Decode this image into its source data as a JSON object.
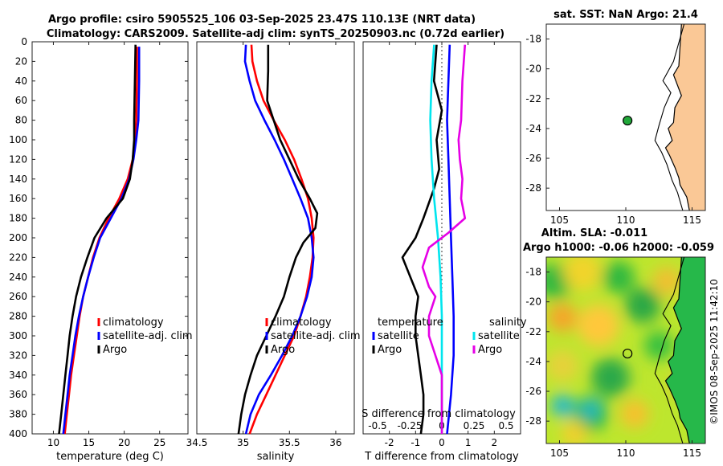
{
  "header": {
    "line1": "Argo profile: csiro 5905525_106 03-Sep-2025 23.47S 110.13E (NRT data)",
    "line2": "Climatology: CARS2009. Satellite-adj clim: synTS_20250903.nc (0.72d earlier)"
  },
  "colors": {
    "climatology": "#ff0000",
    "satellite": "#0000ff",
    "argo": "#000000",
    "sat_salinity": "#00e5ee",
    "argo_salinity": "#e600e6",
    "land": "#fac896"
  },
  "chart_data": [
    {
      "type": "line",
      "id": "temperature",
      "xlabel": "temperature (deg C)",
      "xlim": [
        7,
        29
      ],
      "xticks": [
        "10",
        "15",
        "20",
        "25"
      ],
      "xtick_values": [
        10,
        15,
        20,
        25
      ],
      "ylim": [
        0,
        400
      ],
      "yreversed": true,
      "yticks": [
        "0",
        "20",
        "40",
        "60",
        "80",
        "100",
        "120",
        "140",
        "160",
        "180",
        "200",
        "220",
        "240",
        "260",
        "280",
        "300",
        "320",
        "340",
        "360",
        "380",
        "400"
      ],
      "ytick_values": [
        0,
        20,
        40,
        60,
        80,
        100,
        120,
        140,
        160,
        180,
        200,
        220,
        240,
        260,
        280,
        300,
        320,
        340,
        360,
        380,
        400
      ],
      "legend": [
        "climatology",
        "satellite-adj. clim",
        "Argo"
      ],
      "series": [
        {
          "name": "climatology",
          "color_key": "climatology",
          "points": [
            [
              21.8,
              5
            ],
            [
              21.8,
              40
            ],
            [
              21.7,
              80
            ],
            [
              21.5,
              100
            ],
            [
              21.2,
              120
            ],
            [
              20.5,
              140
            ],
            [
              19.3,
              160
            ],
            [
              17.8,
              180
            ],
            [
              16.5,
              200
            ],
            [
              15.6,
              220
            ],
            [
              14.9,
              240
            ],
            [
              14.2,
              260
            ],
            [
              13.7,
              280
            ],
            [
              13.3,
              300
            ],
            [
              12.9,
              320
            ],
            [
              12.5,
              340
            ],
            [
              12.2,
              360
            ],
            [
              11.9,
              380
            ],
            [
              11.6,
              400
            ]
          ]
        },
        {
          "name": "satellite-adj. clim",
          "color_key": "satellite",
          "points": [
            [
              22.1,
              5
            ],
            [
              22.1,
              40
            ],
            [
              22.0,
              80
            ],
            [
              21.7,
              100
            ],
            [
              21.3,
              120
            ],
            [
              20.7,
              140
            ],
            [
              19.6,
              160
            ],
            [
              18.1,
              180
            ],
            [
              16.6,
              200
            ],
            [
              15.7,
              220
            ],
            [
              14.9,
              240
            ],
            [
              14.2,
              260
            ],
            [
              13.6,
              280
            ],
            [
              13.1,
              300
            ],
            [
              12.7,
              320
            ],
            [
              12.3,
              340
            ],
            [
              12.0,
              360
            ],
            [
              11.7,
              380
            ],
            [
              11.4,
              400
            ]
          ]
        },
        {
          "name": "Argo",
          "color_key": "argo",
          "points": [
            [
              21.6,
              3
            ],
            [
              21.5,
              40
            ],
            [
              21.4,
              80
            ],
            [
              21.4,
              100
            ],
            [
              21.2,
              120
            ],
            [
              20.8,
              140
            ],
            [
              19.8,
              160
            ],
            [
              17.5,
              180
            ],
            [
              15.8,
              200
            ],
            [
              14.8,
              220
            ],
            [
              13.9,
              240
            ],
            [
              13.2,
              260
            ],
            [
              12.7,
              280
            ],
            [
              12.3,
              300
            ],
            [
              12.0,
              320
            ],
            [
              11.7,
              340
            ],
            [
              11.4,
              360
            ],
            [
              11.1,
              380
            ],
            [
              10.8,
              400
            ]
          ]
        }
      ]
    },
    {
      "type": "line",
      "id": "salinity",
      "xlabel": "salinity",
      "xlim": [
        34.5,
        36.2
      ],
      "xticks": [
        "34.5",
        "35",
        "35.5",
        "36"
      ],
      "xtick_values": [
        34.5,
        35.0,
        35.5,
        36.0
      ],
      "ylim": [
        0,
        400
      ],
      "yreversed": true,
      "legend": [
        "climatology",
        "satellite-adj. clim",
        "Argo"
      ],
      "series": [
        {
          "name": "climatology",
          "color_key": "climatology",
          "points": [
            [
              35.09,
              3
            ],
            [
              35.1,
              20
            ],
            [
              35.15,
              40
            ],
            [
              35.22,
              60
            ],
            [
              35.33,
              80
            ],
            [
              35.45,
              100
            ],
            [
              35.55,
              120
            ],
            [
              35.63,
              140
            ],
            [
              35.7,
              160
            ],
            [
              35.74,
              180
            ],
            [
              35.76,
              200
            ],
            [
              35.75,
              220
            ],
            [
              35.72,
              240
            ],
            [
              35.68,
              260
            ],
            [
              35.62,
              280
            ],
            [
              35.55,
              300
            ],
            [
              35.45,
              320
            ],
            [
              35.35,
              340
            ],
            [
              35.25,
              360
            ],
            [
              35.15,
              380
            ],
            [
              35.07,
              400
            ]
          ]
        },
        {
          "name": "satellite-adj. clim",
          "color_key": "satellite",
          "points": [
            [
              35.03,
              3
            ],
            [
              35.02,
              20
            ],
            [
              35.07,
              40
            ],
            [
              35.13,
              60
            ],
            [
              35.23,
              80
            ],
            [
              35.34,
              100
            ],
            [
              35.44,
              120
            ],
            [
              35.53,
              140
            ],
            [
              35.62,
              160
            ],
            [
              35.7,
              180
            ],
            [
              35.74,
              200
            ],
            [
              35.76,
              220
            ],
            [
              35.74,
              240
            ],
            [
              35.69,
              260
            ],
            [
              35.62,
              280
            ],
            [
              35.53,
              300
            ],
            [
              35.42,
              320
            ],
            [
              35.3,
              340
            ],
            [
              35.17,
              360
            ],
            [
              35.08,
              380
            ],
            [
              35.03,
              400
            ]
          ]
        },
        {
          "name": "Argo",
          "color_key": "argo",
          "points": [
            [
              35.27,
              3
            ],
            [
              35.27,
              30
            ],
            [
              35.26,
              60
            ],
            [
              35.33,
              80
            ],
            [
              35.4,
              100
            ],
            [
              35.5,
              120
            ],
            [
              35.6,
              140
            ],
            [
              35.72,
              160
            ],
            [
              35.8,
              175
            ],
            [
              35.78,
              190
            ],
            [
              35.65,
              205
            ],
            [
              35.57,
              220
            ],
            [
              35.5,
              240
            ],
            [
              35.44,
              260
            ],
            [
              35.35,
              280
            ],
            [
              35.25,
              300
            ],
            [
              35.15,
              320
            ],
            [
              35.08,
              340
            ],
            [
              35.02,
              360
            ],
            [
              34.98,
              380
            ],
            [
              34.95,
              400
            ]
          ]
        }
      ]
    },
    {
      "type": "line",
      "id": "differences",
      "xlabel": "T difference from climatology",
      "xlim": [
        -3,
        3
      ],
      "xticks": [
        "-2",
        "-1",
        "0",
        "1",
        "2"
      ],
      "xtick_values": [
        -2,
        -1,
        0,
        1,
        2
      ],
      "top_axis_label": "S difference from climatology",
      "top_ticks": [
        "-0.5",
        "-0.25",
        "0",
        "0.25",
        "0.5"
      ],
      "top_tick_values": [
        -0.5,
        -0.25,
        0,
        0.25,
        0.5
      ],
      "ylim": [
        0,
        400
      ],
      "yreversed": true,
      "legend_left_title": "temperature",
      "legend_left": [
        "satellite",
        "Argo"
      ],
      "legend_right_title": "salinity",
      "legend_right": [
        "satellite",
        "Argo"
      ],
      "series": [
        {
          "name": "T satellite",
          "color_key": "satellite",
          "points": [
            [
              0.3,
              3
            ],
            [
              0.25,
              40
            ],
            [
              0.2,
              80
            ],
            [
              0.25,
              120
            ],
            [
              0.3,
              160
            ],
            [
              0.35,
              200
            ],
            [
              0.4,
              240
            ],
            [
              0.45,
              280
            ],
            [
              0.45,
              320
            ],
            [
              0.35,
              360
            ],
            [
              0.2,
              400
            ]
          ]
        },
        {
          "name": "T Argo",
          "color_key": "argo",
          "points": [
            [
              -0.2,
              3
            ],
            [
              -0.3,
              40
            ],
            [
              0.0,
              70
            ],
            [
              -0.2,
              100
            ],
            [
              -0.1,
              130
            ],
            [
              -0.3,
              150
            ],
            [
              -0.7,
              180
            ],
            [
              -1.0,
              200
            ],
            [
              -1.5,
              220
            ],
            [
              -1.2,
              240
            ],
            [
              -0.9,
              260
            ],
            [
              -1.0,
              280
            ],
            [
              -1.0,
              300
            ],
            [
              -0.9,
              320
            ],
            [
              -0.8,
              340
            ],
            [
              -0.7,
              360
            ],
            [
              -0.7,
              380
            ],
            [
              -0.8,
              400
            ]
          ]
        },
        {
          "name": "S satellite",
          "color_key": "sat_salinity",
          "points": [
            [
              -0.06,
              3
            ],
            [
              -0.08,
              40
            ],
            [
              -0.09,
              80
            ],
            [
              -0.08,
              120
            ],
            [
              -0.06,
              160
            ],
            [
              -0.03,
              200
            ],
            [
              -0.01,
              240
            ],
            [
              0.0,
              280
            ],
            [
              0.0,
              320
            ],
            [
              0.0,
              360
            ],
            [
              0.0,
              400
            ]
          ]
        },
        {
          "name": "S Argo",
          "color_key": "argo_salinity",
          "points": [
            [
              0.18,
              3
            ],
            [
              0.16,
              40
            ],
            [
              0.15,
              80
            ],
            [
              0.13,
              100
            ],
            [
              0.14,
              120
            ],
            [
              0.16,
              140
            ],
            [
              0.15,
              160
            ],
            [
              0.18,
              180
            ],
            [
              0.05,
              195
            ],
            [
              -0.1,
              210
            ],
            [
              -0.15,
              230
            ],
            [
              -0.1,
              250
            ],
            [
              -0.05,
              260
            ],
            [
              -0.1,
              280
            ],
            [
              -0.1,
              300
            ],
            [
              -0.05,
              320
            ],
            [
              0.0,
              340
            ],
            [
              0.0,
              360
            ],
            [
              0.0,
              380
            ],
            [
              0.0,
              400
            ]
          ]
        }
      ]
    }
  ],
  "map_sst": {
    "title": "sat. SST: NaN Argo: 21.4",
    "xlim": [
      104,
      116
    ],
    "ylim": [
      -29.5,
      -17
    ],
    "xticks": [
      "105",
      "110",
      "115"
    ],
    "xtick_values": [
      105,
      110,
      115
    ],
    "yticks": [
      "-18",
      "-20",
      "-22",
      "-24",
      "-26",
      "-28"
    ],
    "ytick_values": [
      -18,
      -20,
      -22,
      -24,
      -26,
      -28
    ],
    "marker": [
      110.13,
      -23.47
    ]
  },
  "map_sla": {
    "title1": "Altim. SLA: -0.011",
    "title2": "Argo h1000: -0.06 h2000: -0.059",
    "xlim": [
      104,
      116
    ],
    "ylim": [
      -29.5,
      -17
    ],
    "xticks": [
      "105",
      "110",
      "115"
    ],
    "xtick_values": [
      105,
      110,
      115
    ],
    "yticks": [
      "-18",
      "-20",
      "-22",
      "-24",
      "-26",
      "-28"
    ],
    "ytick_values": [
      -18,
      -20,
      -22,
      -24,
      -26,
      -28
    ],
    "marker": [
      110.13,
      -23.47
    ]
  },
  "side_label": "©IMOS 08-Sep-2025 11:42:10"
}
